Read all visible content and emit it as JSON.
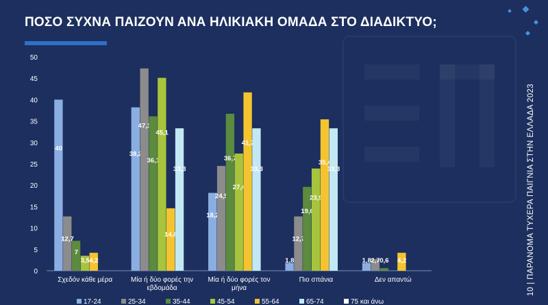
{
  "title": "ΠΟΣΟ ΣΥΧΝΑ ΠΑΙΖΟΥΝ ΑΝΑ ΗΛΙΚΙΑΚΗ ΟΜΑΔΑ ΣΤΟ ΔΙΑΔΙΚΤΥΟ;",
  "side_text": "ΠΑΡΑΝΟΜΑ ΤΥΧΕΡΑ ΠΑΙΓΝΙΑ ΣΤΗΝ ΕΛΛΑΔΑ 2023",
  "page_number": "10",
  "chart_data": {
    "type": "bar",
    "title": "",
    "xlabel": "",
    "ylabel": "",
    "ylim": [
      0,
      50
    ],
    "yticks": [
      0,
      5,
      10,
      15,
      20,
      25,
      30,
      35,
      40,
      45,
      50
    ],
    "grid": false,
    "legend": "bottom",
    "categories": [
      [
        "Σχεδόν κάθε μέρα"
      ],
      [
        "Μία ή δύο φορές την",
        "εβδομάδα"
      ],
      [
        "Μία ή δύο φορές τον",
        "μήνα"
      ],
      [
        "Πιο σπάνια"
      ],
      [
        "Δεν απαντώ"
      ]
    ],
    "series": [
      {
        "name": "17-24",
        "color": "#8aaee2",
        "values": [
          40,
          38.2,
          18.2,
          1.8,
          1.8
        ],
        "labels": [
          "40",
          "38,2",
          "18,2",
          "1,8",
          "1,8"
        ]
      },
      {
        "name": "25-34",
        "color": "#8c8c8c",
        "values": [
          12.7,
          47.3,
          24.5,
          12.7,
          2.7
        ],
        "labels": [
          "12,7",
          "47,3",
          "24,5",
          "12,7",
          "2,7"
        ]
      },
      {
        "name": "35-44",
        "color": "#5c8a3e",
        "values": [
          7,
          36.1,
          36.7,
          19.6,
          0.6
        ],
        "labels": [
          "7",
          "36,1",
          "36,7",
          "19,6",
          "0,6"
        ]
      },
      {
        "name": "45-54",
        "color": "#a8c43c",
        "values": [
          3.5,
          45.1,
          27.4,
          23.9,
          0
        ],
        "labels": [
          "3,5",
          "45,1",
          "27,4",
          "23,9",
          ""
        ]
      },
      {
        "name": "55-64",
        "color": "#f4c430",
        "values": [
          4.2,
          14.6,
          41.7,
          35.4,
          4.2
        ],
        "labels": [
          "4,2",
          "14,6",
          "41,7",
          "35,4",
          "4,2"
        ]
      },
      {
        "name": "65-74",
        "color": "#c2e8f4",
        "values": [
          0,
          33.3,
          33.3,
          33.3,
          0
        ],
        "labels": [
          "",
          "33,3",
          "33,3",
          "33,3",
          ""
        ]
      },
      {
        "name": "75 και άνω",
        "color": "#ffffff",
        "values": [
          0,
          0,
          0,
          0,
          0
        ],
        "labels": [
          "",
          "",
          "",
          "",
          ""
        ]
      }
    ]
  }
}
